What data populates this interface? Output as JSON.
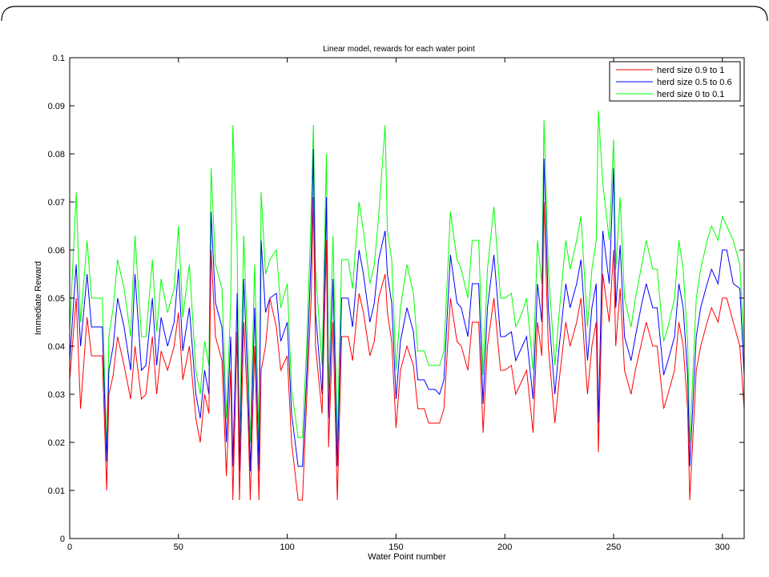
{
  "chart_data": {
    "type": "line",
    "title": "Linear model, rewards for each water point",
    "xlabel": "Water Point number",
    "ylabel": "Immediate Reward",
    "xlim": [
      0,
      310
    ],
    "ylim": [
      0,
      0.1
    ],
    "xticks": [
      0,
      50,
      100,
      150,
      200,
      250,
      300
    ],
    "yticks": [
      0,
      0.01,
      0.02,
      0.03,
      0.04,
      0.05,
      0.06,
      0.07,
      0.08,
      0.09,
      0.1
    ],
    "xtick_labels": [
      "0",
      "50",
      "100",
      "150",
      "200",
      "250",
      "300"
    ],
    "ytick_labels": [
      "0",
      "0.01",
      "0.02",
      "0.03",
      "0.04",
      "0.05",
      "0.06",
      "0.07",
      "0.08",
      "0.09",
      "0.1"
    ],
    "grid": false,
    "legend_position": "top-right",
    "x": [
      0,
      3,
      5,
      8,
      10,
      13,
      15,
      17,
      18,
      20,
      22,
      25,
      28,
      30,
      33,
      35,
      38,
      40,
      42,
      45,
      48,
      50,
      52,
      55,
      58,
      60,
      62,
      64,
      65,
      67,
      70,
      72,
      74,
      75,
      77,
      78,
      80,
      82,
      83,
      85,
      87,
      88,
      90,
      92,
      95,
      97,
      100,
      102,
      105,
      107,
      109,
      111,
      112,
      113,
      116,
      118,
      119,
      121,
      123,
      125,
      128,
      130,
      133,
      135,
      138,
      140,
      142,
      145,
      146,
      148,
      150,
      152,
      155,
      158,
      160,
      163,
      165,
      168,
      170,
      172,
      175,
      178,
      180,
      183,
      185,
      188,
      190,
      192,
      195,
      198,
      200,
      203,
      205,
      208,
      210,
      213,
      215,
      217,
      218,
      220,
      223,
      225,
      228,
      230,
      233,
      235,
      238,
      240,
      242,
      243,
      245,
      248,
      250,
      251,
      253,
      255,
      258,
      260,
      263,
      265,
      268,
      270,
      273,
      275,
      278,
      280,
      282,
      284,
      285,
      288,
      290,
      293,
      295,
      298,
      300,
      302,
      305,
      308,
      310
    ],
    "series": [
      {
        "name": "herd size 0.9 to 1",
        "color": "#ff0000",
        "values": [
          0.033,
          0.05,
          0.027,
          0.046,
          0.038,
          0.038,
          0.038,
          0.01,
          0.03,
          0.034,
          0.042,
          0.036,
          0.029,
          0.04,
          0.029,
          0.03,
          0.042,
          0.03,
          0.039,
          0.035,
          0.04,
          0.047,
          0.033,
          0.04,
          0.025,
          0.02,
          0.03,
          0.026,
          0.06,
          0.042,
          0.037,
          0.013,
          0.035,
          0.008,
          0.043,
          0.008,
          0.045,
          0.025,
          0.008,
          0.04,
          0.008,
          0.035,
          0.04,
          0.05,
          0.044,
          0.035,
          0.038,
          0.02,
          0.008,
          0.008,
          0.03,
          0.05,
          0.071,
          0.04,
          0.026,
          0.062,
          0.019,
          0.045,
          0.008,
          0.042,
          0.042,
          0.037,
          0.051,
          0.047,
          0.038,
          0.041,
          0.05,
          0.055,
          0.047,
          0.041,
          0.023,
          0.035,
          0.04,
          0.036,
          0.027,
          0.027,
          0.024,
          0.024,
          0.024,
          0.027,
          0.05,
          0.041,
          0.04,
          0.035,
          0.045,
          0.045,
          0.022,
          0.04,
          0.05,
          0.035,
          0.035,
          0.036,
          0.03,
          0.033,
          0.035,
          0.022,
          0.045,
          0.038,
          0.07,
          0.04,
          0.024,
          0.033,
          0.045,
          0.04,
          0.045,
          0.05,
          0.03,
          0.04,
          0.045,
          0.018,
          0.055,
          0.045,
          0.06,
          0.04,
          0.052,
          0.035,
          0.03,
          0.035,
          0.041,
          0.045,
          0.04,
          0.04,
          0.027,
          0.03,
          0.035,
          0.045,
          0.04,
          0.027,
          0.008,
          0.035,
          0.04,
          0.045,
          0.048,
          0.045,
          0.05,
          0.05,
          0.045,
          0.04,
          0.027
        ]
      },
      {
        "name": "herd size 0.5 to 0.6",
        "color": "#0000ff",
        "values": [
          0.037,
          0.057,
          0.04,
          0.055,
          0.044,
          0.044,
          0.044,
          0.016,
          0.035,
          0.04,
          0.05,
          0.044,
          0.035,
          0.055,
          0.035,
          0.036,
          0.05,
          0.036,
          0.046,
          0.04,
          0.045,
          0.056,
          0.039,
          0.048,
          0.03,
          0.025,
          0.035,
          0.03,
          0.068,
          0.049,
          0.044,
          0.02,
          0.042,
          0.015,
          0.051,
          0.014,
          0.054,
          0.031,
          0.014,
          0.048,
          0.014,
          0.062,
          0.047,
          0.05,
          0.051,
          0.041,
          0.045,
          0.026,
          0.015,
          0.015,
          0.035,
          0.059,
          0.081,
          0.047,
          0.03,
          0.071,
          0.025,
          0.054,
          0.015,
          0.05,
          0.05,
          0.044,
          0.06,
          0.055,
          0.045,
          0.049,
          0.058,
          0.064,
          0.055,
          0.049,
          0.029,
          0.041,
          0.048,
          0.043,
          0.033,
          0.033,
          0.031,
          0.031,
          0.03,
          0.033,
          0.059,
          0.049,
          0.048,
          0.042,
          0.053,
          0.053,
          0.028,
          0.048,
          0.059,
          0.042,
          0.042,
          0.043,
          0.037,
          0.04,
          0.042,
          0.029,
          0.053,
          0.045,
          0.079,
          0.048,
          0.03,
          0.04,
          0.053,
          0.048,
          0.053,
          0.058,
          0.037,
          0.048,
          0.053,
          0.024,
          0.064,
          0.053,
          0.077,
          0.048,
          0.061,
          0.042,
          0.037,
          0.042,
          0.049,
          0.053,
          0.048,
          0.048,
          0.034,
          0.037,
          0.042,
          0.053,
          0.048,
          0.034,
          0.015,
          0.042,
          0.048,
          0.053,
          0.056,
          0.053,
          0.06,
          0.06,
          0.053,
          0.052,
          0.034
        ]
      },
      {
        "name": "herd size 0 to 0.1",
        "color": "#00ff00",
        "values": [
          0.043,
          0.072,
          0.045,
          0.062,
          0.05,
          0.05,
          0.05,
          0.018,
          0.042,
          0.048,
          0.058,
          0.052,
          0.042,
          0.063,
          0.042,
          0.042,
          0.058,
          0.043,
          0.054,
          0.047,
          0.052,
          0.065,
          0.046,
          0.057,
          0.035,
          0.03,
          0.041,
          0.036,
          0.077,
          0.057,
          0.052,
          0.025,
          0.049,
          0.086,
          0.06,
          0.02,
          0.063,
          0.037,
          0.02,
          0.057,
          0.02,
          0.072,
          0.055,
          0.058,
          0.06,
          0.048,
          0.053,
          0.031,
          0.021,
          0.021,
          0.041,
          0.068,
          0.086,
          0.056,
          0.036,
          0.08,
          0.031,
          0.063,
          0.02,
          0.058,
          0.058,
          0.052,
          0.07,
          0.064,
          0.053,
          0.057,
          0.067,
          0.086,
          0.064,
          0.058,
          0.035,
          0.048,
          0.057,
          0.051,
          0.039,
          0.039,
          0.036,
          0.036,
          0.036,
          0.039,
          0.068,
          0.058,
          0.056,
          0.05,
          0.062,
          0.062,
          0.034,
          0.056,
          0.069,
          0.05,
          0.05,
          0.051,
          0.044,
          0.047,
          0.05,
          0.035,
          0.062,
          0.053,
          0.087,
          0.056,
          0.036,
          0.047,
          0.062,
          0.056,
          0.062,
          0.067,
          0.044,
          0.056,
          0.062,
          0.089,
          0.074,
          0.062,
          0.083,
          0.056,
          0.071,
          0.05,
          0.044,
          0.05,
          0.057,
          0.062,
          0.056,
          0.056,
          0.041,
          0.044,
          0.05,
          0.062,
          0.056,
          0.041,
          0.02,
          0.05,
          0.056,
          0.062,
          0.065,
          0.062,
          0.067,
          0.065,
          0.062,
          0.057,
          0.039
        ]
      }
    ]
  }
}
